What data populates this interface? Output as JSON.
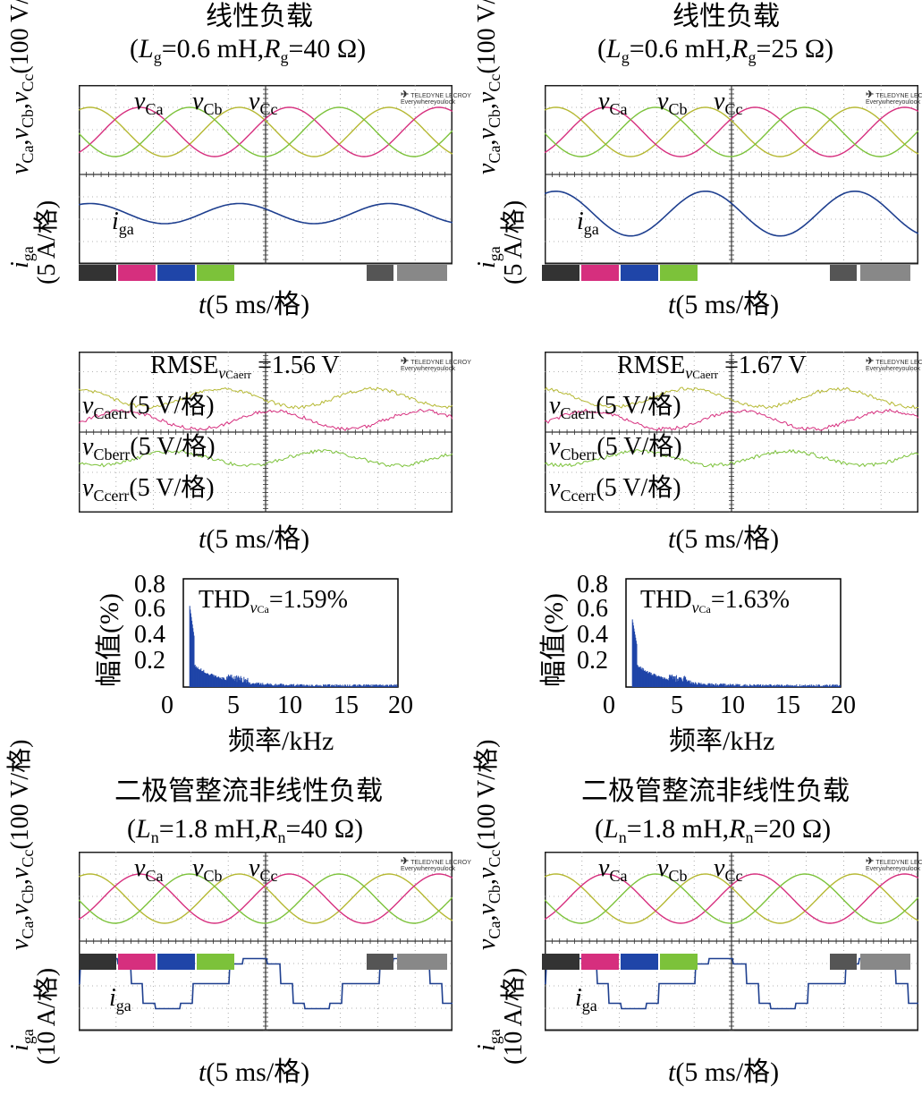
{
  "colors": {
    "phase_a": "#b5b832",
    "phase_b": "#d62f7e",
    "phase_c": "#7cc23a",
    "current": "#1e3f8f",
    "grid": "#9a9a9a",
    "frame": "#202020",
    "spectrum": "#1f45a8"
  },
  "labels": {
    "time_axis": "t(5 ms/格)",
    "volt_axis": "vCa,vCb,vCc(100 V/格)",
    "curr_axis_5": "iga(5 A/格)",
    "curr_axis_10": "iga(10 A/格)",
    "err_a": "vCaerr(5 V/格)",
    "err_b": "vCberr(5 V/格)",
    "err_c": "vCcerr(5 V/格)",
    "freq_axis": "频率/kHz",
    "amp_axis": "幅值(%)",
    "logo_line1": "TELEDYNE LECROY",
    "logo_line2": "Everywhereyoulook"
  },
  "rows": {
    "linear_title": "线性负载",
    "linear_left_sub": "(Lg=0.6 mH,Rg=40 Ω)",
    "linear_right_sub": "(Lg=0.6 mH,Rg=25 Ω)",
    "rmse_left": "RMSE vCaerr =1.56 V",
    "rmse_right": "RMSE vCaerr =1.67 V",
    "thd_left": "THD vCa =1.59%",
    "thd_right": "THD vCa =1.63%",
    "nonlinear_title": "二极管整流非线性负载",
    "nonlinear_left_sub": "(Ln=1.8 mH,Rn=40 Ω)",
    "nonlinear_right_sub": "(Ln=1.8 mH,Rn=20 Ω)"
  },
  "chart_data": [
    {
      "type": "line",
      "panel": "linear-left-waveforms",
      "title": "线性负载 (Lg=0.6 mH,Rg=40 Ω)",
      "xlabel": "t(5 ms/格)",
      "ylabel": "vCa,vCb,vCc(100 V/格); iga(5 A/格)",
      "grid": true,
      "x_divisions": 10,
      "series": [
        {
          "name": "vCa",
          "shape": "sine",
          "amplitude_div": 0.55,
          "periods": 2.5,
          "phase_deg": 0
        },
        {
          "name": "vCb",
          "shape": "sine",
          "amplitude_div": 0.55,
          "periods": 2.5,
          "phase_deg": -120
        },
        {
          "name": "vCc",
          "shape": "sine",
          "amplitude_div": 0.55,
          "periods": 2.5,
          "phase_deg": 120
        },
        {
          "name": "iga",
          "shape": "sine",
          "amplitude_div": 0.15,
          "periods": 2.5,
          "phase_deg": 0
        }
      ]
    },
    {
      "type": "line",
      "panel": "linear-right-waveforms",
      "title": "线性负载 (Lg=0.6 mH,Rg=25 Ω)",
      "xlabel": "t(5 ms/格)",
      "ylabel": "vCa,vCb,vCc(100 V/格); iga(5 A/格)",
      "grid": true,
      "x_divisions": 10,
      "series": [
        {
          "name": "vCa",
          "shape": "sine",
          "amplitude_div": 0.55,
          "periods": 2.5,
          "phase_deg": 0
        },
        {
          "name": "vCb",
          "shape": "sine",
          "amplitude_div": 0.55,
          "periods": 2.5,
          "phase_deg": -120
        },
        {
          "name": "vCc",
          "shape": "sine",
          "amplitude_div": 0.55,
          "periods": 2.5,
          "phase_deg": 120
        },
        {
          "name": "iga",
          "shape": "sine",
          "amplitude_div": 0.35,
          "periods": 2.5,
          "phase_deg": 0
        }
      ]
    },
    {
      "type": "line",
      "panel": "linear-left-errors",
      "annotation": "RMSE vCaerr =1.56 V",
      "xlabel": "t(5 ms/格)",
      "grid": true,
      "series": [
        {
          "name": "vCaerr",
          "unit": "5 V/格"
        },
        {
          "name": "vCberr",
          "unit": "5 V/格"
        },
        {
          "name": "vCcerr",
          "unit": "5 V/格"
        }
      ]
    },
    {
      "type": "line",
      "panel": "linear-right-errors",
      "annotation": "RMSE vCaerr =1.67 V",
      "xlabel": "t(5 ms/格)",
      "grid": true,
      "series": [
        {
          "name": "vCaerr",
          "unit": "5 V/格"
        },
        {
          "name": "vCberr",
          "unit": "5 V/格"
        },
        {
          "name": "vCcerr",
          "unit": "5 V/格"
        }
      ]
    },
    {
      "type": "bar",
      "panel": "linear-left-spectrum",
      "annotation": "THD vCa =1.59%",
      "xlabel": "频率/kHz",
      "ylabel": "幅值(%)",
      "xlim": [
        0,
        20
      ],
      "ylim": [
        0,
        0.8
      ],
      "xticks": [
        0,
        5,
        10,
        15,
        20
      ],
      "yticks": [
        0.2,
        0.4,
        0.6,
        0.8
      ],
      "peak_at_1kHz": 0.55
    },
    {
      "type": "bar",
      "panel": "linear-right-spectrum",
      "annotation": "THD vCa =1.63%",
      "xlabel": "频率/kHz",
      "ylabel": "幅值(%)",
      "xlim": [
        0,
        20
      ],
      "ylim": [
        0,
        0.8
      ],
      "xticks": [
        0,
        5,
        10,
        15,
        20
      ],
      "yticks": [
        0.2,
        0.4,
        0.6,
        0.8
      ],
      "peak_at_1kHz": 0.45
    },
    {
      "type": "line",
      "panel": "nonlinear-left-waveforms",
      "title": "二极管整流非线性负载 (Ln=1.8 mH,Rn=40 Ω)",
      "xlabel": "t(5 ms/格)",
      "ylabel": "vCa,vCb,vCc(100 V/格); iga(10 A/格)",
      "grid": true,
      "series": [
        {
          "name": "vCa",
          "shape": "sine"
        },
        {
          "name": "vCb",
          "shape": "sine"
        },
        {
          "name": "vCc",
          "shape": "sine"
        },
        {
          "name": "iga",
          "shape": "stepped"
        }
      ]
    },
    {
      "type": "line",
      "panel": "nonlinear-right-waveforms",
      "title": "二极管整流非线性负载 (Ln=1.8 mH,Rn=20 Ω)",
      "xlabel": "t(5 ms/格)",
      "ylabel": "vCa,vCb,vCc(100 V/格); iga(10 A/格)",
      "grid": true,
      "series": [
        {
          "name": "vCa",
          "shape": "sine"
        },
        {
          "name": "vCb",
          "shape": "sine"
        },
        {
          "name": "vCc",
          "shape": "sine"
        },
        {
          "name": "iga",
          "shape": "stepped"
        }
      ]
    }
  ]
}
